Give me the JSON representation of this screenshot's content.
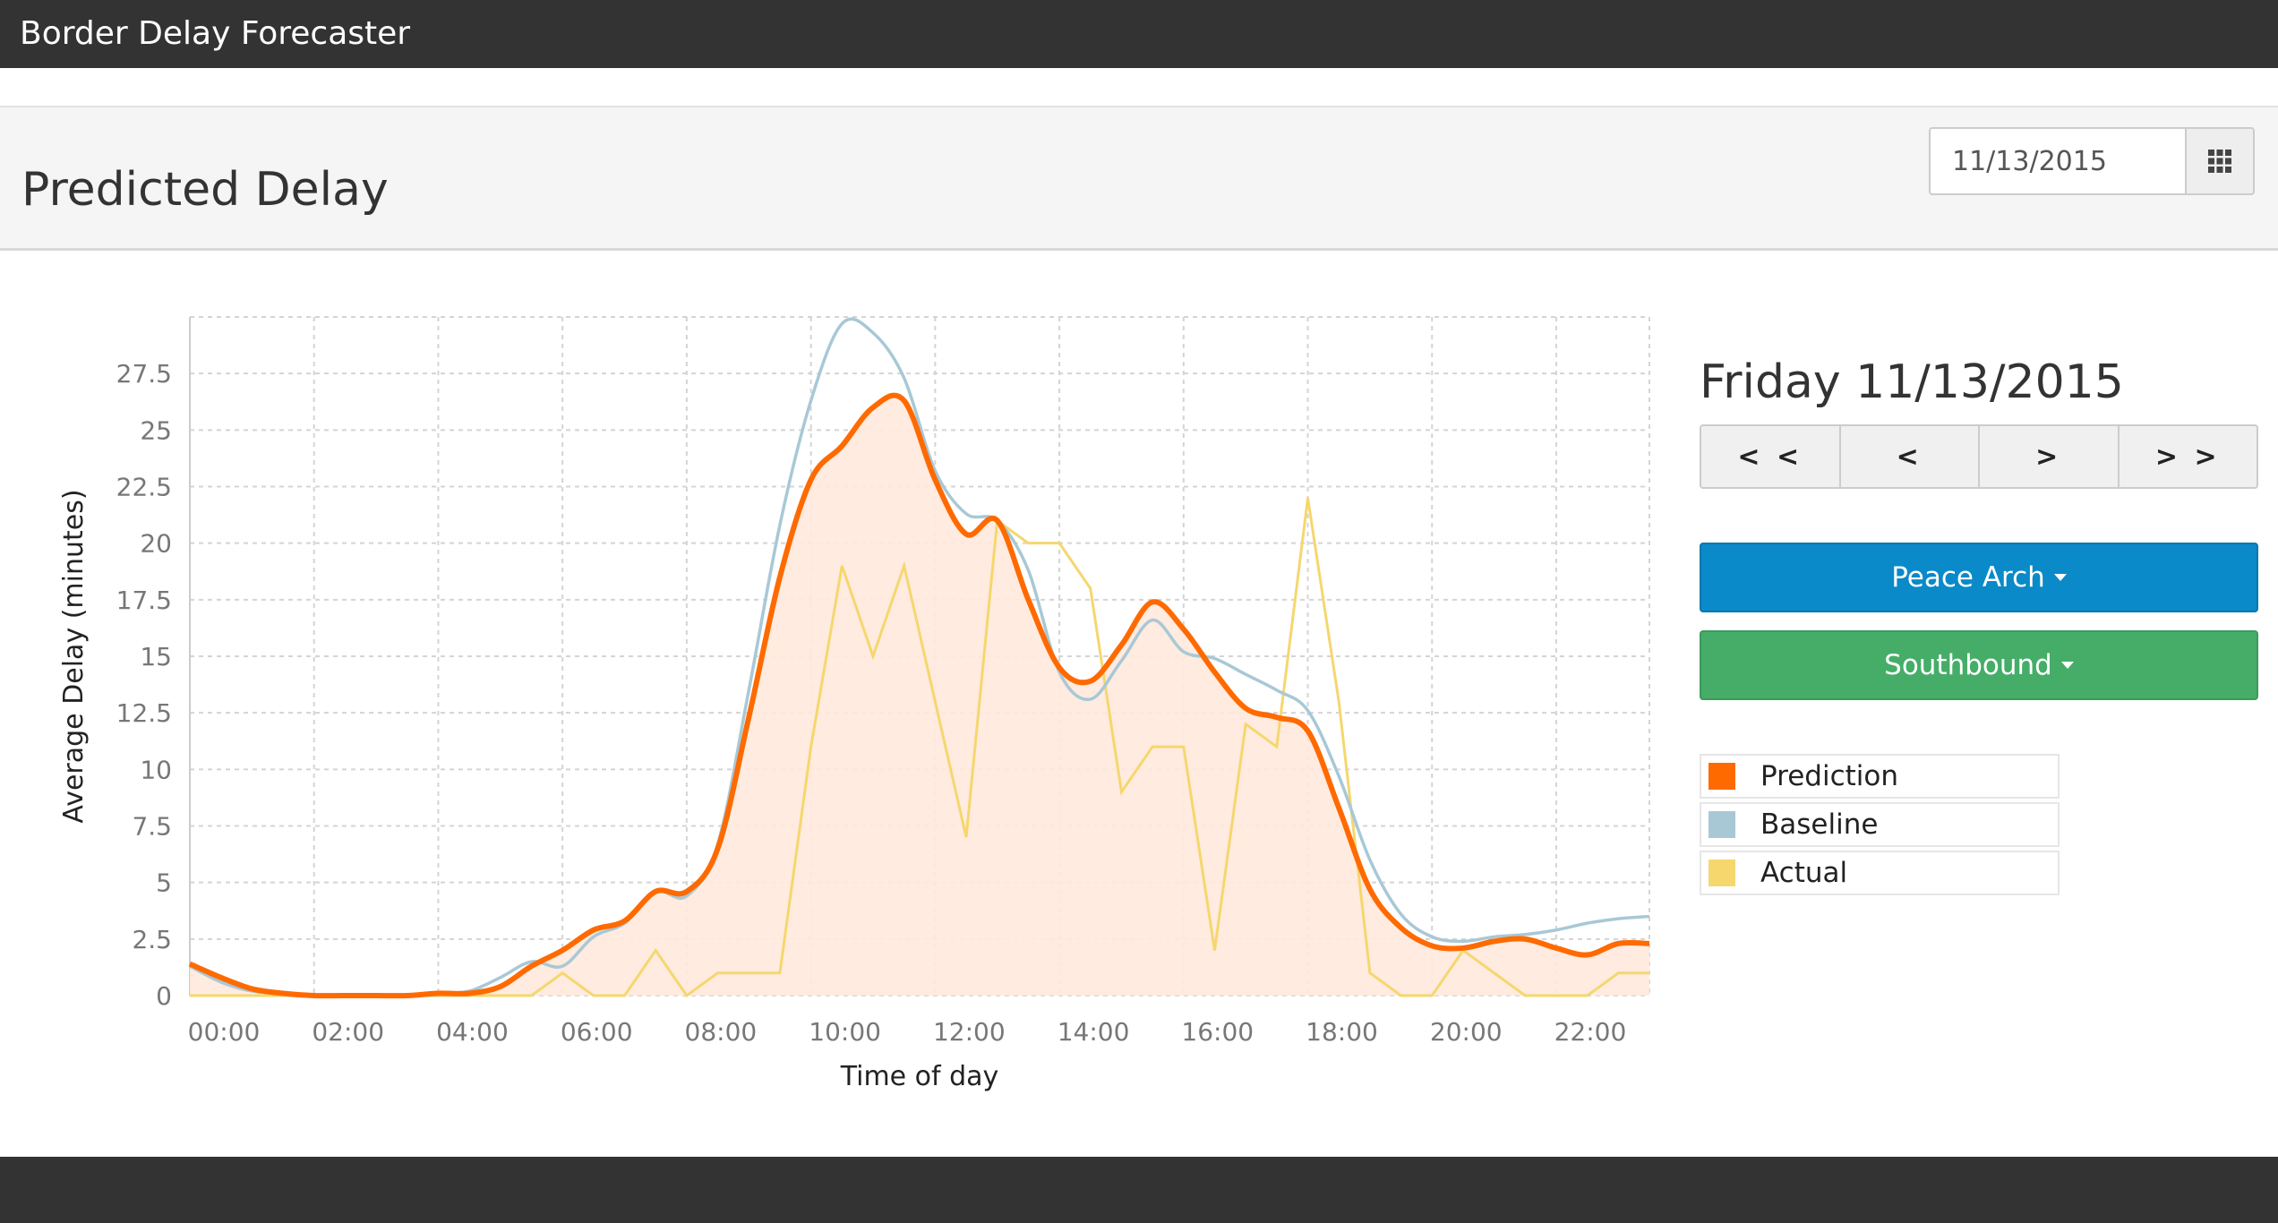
{
  "navbar": {
    "brand": "Border Delay Forecaster"
  },
  "header": {
    "title": "Predicted Delay",
    "date_value": "11/13/2015",
    "calendar_icon": "grid-calendar-icon"
  },
  "sidebar": {
    "day_title": "Friday 11/13/2015",
    "nav_buttons": [
      {
        "label": "< <",
        "icon": "double-chevron-left-icon"
      },
      {
        "label": "<",
        "icon": "chevron-left-icon"
      },
      {
        "label": ">",
        "icon": "chevron-right-icon"
      },
      {
        "label": "> >",
        "icon": "double-chevron-right-icon"
      }
    ],
    "crossing_label": "Peace Arch",
    "direction_label": "Southbound",
    "colors": {
      "crossing": "#0a8ac8",
      "direction": "#45ad68"
    }
  },
  "chart_data": {
    "type": "line",
    "xlabel": "Time of day",
    "ylabel": "Average Delay (minutes)",
    "xlim": [
      0,
      23.5
    ],
    "ylim": [
      0,
      30
    ],
    "x_ticks": [
      "00:00",
      "02:00",
      "04:00",
      "06:00",
      "08:00",
      "10:00",
      "12:00",
      "14:00",
      "16:00",
      "18:00",
      "20:00",
      "22:00"
    ],
    "y_ticks": [
      "0",
      "2.5",
      "5",
      "7.5",
      "10",
      "12.5",
      "15",
      "17.5",
      "20",
      "22.5",
      "25",
      "27.5"
    ],
    "grid": true,
    "legend_position": "right",
    "series": [
      {
        "name": "Prediction",
        "color": "#ff6a00",
        "area": true,
        "x": [
          0,
          0.5,
          1,
          1.5,
          2,
          2.5,
          3,
          3.5,
          4,
          4.5,
          5,
          5.5,
          6,
          6.5,
          7,
          7.5,
          8,
          8.5,
          9,
          9.5,
          10,
          10.5,
          11,
          11.5,
          12,
          12.5,
          13,
          13.5,
          14,
          14.5,
          15,
          15.5,
          16,
          16.5,
          17,
          17.5,
          18,
          18.5,
          19,
          19.5,
          20,
          20.5,
          21,
          21.5,
          22,
          22.5,
          23,
          23.5
        ],
        "values": [
          1.4,
          0.8,
          0.3,
          0.1,
          0,
          0,
          0,
          0,
          0.1,
          0.1,
          0.4,
          1.3,
          2,
          2.9,
          3.3,
          4.6,
          4.6,
          6.5,
          12.3,
          18.5,
          22.8,
          24.3,
          26,
          26.3,
          22.8,
          20.4,
          21,
          17.5,
          14.5,
          13.9,
          15.5,
          17.4,
          16.2,
          14.3,
          12.7,
          12.3,
          11.7,
          8.3,
          4.7,
          3,
          2.2,
          2.1,
          2.4,
          2.5,
          2.1,
          1.8,
          2.3,
          2.3
        ]
      },
      {
        "name": "Baseline",
        "color": "#a8c8d6",
        "x": [
          0,
          0.5,
          1,
          1.5,
          2,
          2.5,
          3,
          3.5,
          4,
          4.5,
          5,
          5.5,
          6,
          6.5,
          7,
          7.5,
          8,
          8.5,
          9,
          9.5,
          10,
          10.5,
          11,
          11.5,
          12,
          12.5,
          13,
          13.5,
          14,
          14.5,
          15,
          15.5,
          16,
          16.5,
          17,
          17.5,
          18,
          18.5,
          19,
          19.5,
          20,
          20.5,
          21,
          21.5,
          22,
          22.5,
          23,
          23.5
        ],
        "values": [
          1.3,
          0.6,
          0.2,
          0.1,
          0,
          0,
          0,
          0,
          0.1,
          0.2,
          0.8,
          1.5,
          1.3,
          2.6,
          3.2,
          4.6,
          4.4,
          6.7,
          13.5,
          20.8,
          26.3,
          29.7,
          29.3,
          27.3,
          23.2,
          21.3,
          21,
          18.8,
          14.3,
          13.1,
          14.8,
          16.6,
          15.2,
          14.9,
          14.2,
          13.5,
          12.6,
          9.7,
          6,
          3.6,
          2.6,
          2.4,
          2.6,
          2.7,
          2.9,
          3.2,
          3.4,
          3.5
        ]
      },
      {
        "name": "Actual",
        "color": "#f5d76e",
        "x": [
          0,
          0.5,
          1,
          1.5,
          2,
          2.5,
          3,
          3.5,
          4,
          4.5,
          5,
          5.5,
          6,
          6.5,
          7,
          7.5,
          8,
          8.5,
          9,
          9.5,
          10,
          10.5,
          11,
          11.5,
          12,
          12.5,
          13,
          13.5,
          14,
          14.5,
          15,
          15.5,
          16,
          16.5,
          17,
          17.5,
          18,
          18.5,
          19,
          19.5,
          20,
          20.5,
          21,
          21.5,
          22,
          22.5,
          23,
          23.5
        ],
        "values": [
          0,
          0,
          0,
          0,
          0,
          0,
          0,
          0,
          0,
          0,
          0,
          0,
          1,
          0,
          0,
          2,
          0,
          1,
          1,
          1,
          11,
          19,
          15,
          19,
          13,
          7,
          21,
          20,
          20,
          18,
          9,
          11,
          11,
          2,
          12,
          11,
          22,
          13,
          1,
          0,
          0,
          2,
          1,
          0,
          0,
          0,
          1,
          1
        ]
      }
    ]
  }
}
